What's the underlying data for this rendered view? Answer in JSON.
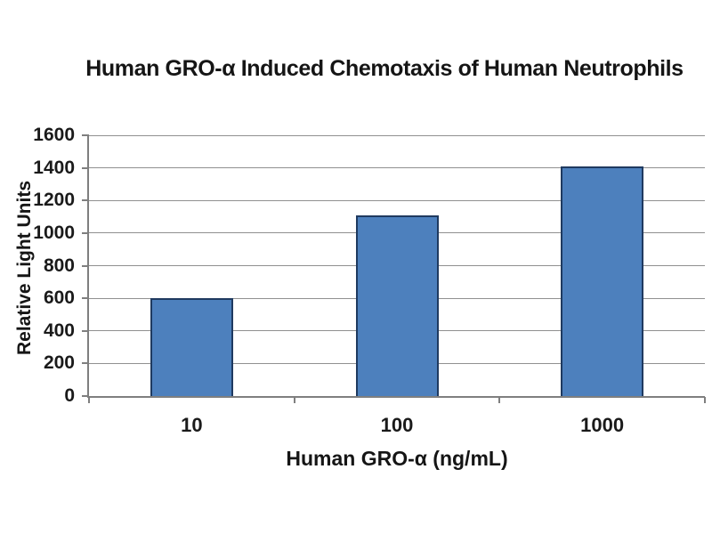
{
  "chart_data": {
    "type": "bar",
    "title": "Human GRO-α Induced Chemotaxis of Human Neutrophils",
    "xlabel": "Human GRO-α (ng/mL)",
    "ylabel": "Relative Light Units",
    "categories": [
      "10",
      "100",
      "1000"
    ],
    "values": [
      600,
      1110,
      1410
    ],
    "ylim": [
      0,
      1600
    ],
    "ytick_step": 200,
    "yticks": [
      0,
      200,
      400,
      600,
      800,
      1000,
      1200,
      1400,
      1600
    ],
    "grid": "horizontal-on",
    "legend": "none",
    "colors": {
      "bar_fill": "#4d80bd",
      "bar_border": "#1f3a60",
      "gridline": "#909090",
      "axis": "#7f7f7f",
      "text": "#1a1a1a",
      "background": "#ffffff"
    }
  }
}
